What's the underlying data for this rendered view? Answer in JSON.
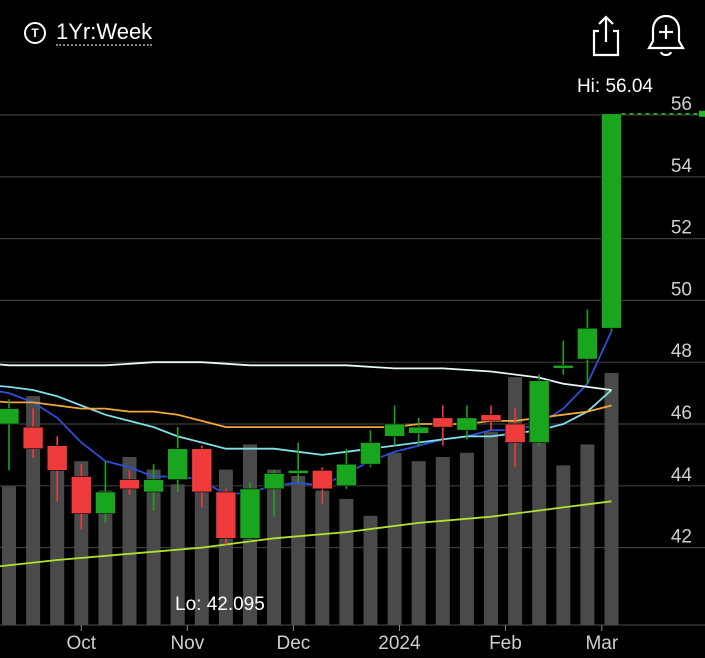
{
  "header": {
    "period_label": "1Yr:Week",
    "period_icon": "T"
  },
  "chart_data": {
    "type": "candlestick",
    "period": "1Yr:Week",
    "y_ticks": [
      "42",
      "44",
      "46",
      "48",
      "50",
      "52",
      "54",
      "56"
    ],
    "ylim": [
      39.2,
      57.3
    ],
    "x_ticks": [
      {
        "label": "Oct",
        "week": 3
      },
      {
        "label": "Nov",
        "week": 7.4
      },
      {
        "label": "Dec",
        "week": 11.8
      },
      {
        "label": "2024",
        "week": 16.2
      },
      {
        "label": "Feb",
        "week": 20.6
      },
      {
        "label": "Mar",
        "week": 24.6
      }
    ],
    "hi_label": "Hi: 56.04",
    "hi_value": 56.04,
    "lo_label": "Lo: 42.095",
    "lo_value": 42.095,
    "candles": [
      {
        "w": 0,
        "o": 46.0,
        "h": 46.8,
        "l": 44.5,
        "c": 46.5
      },
      {
        "w": 1,
        "o": 45.9,
        "h": 46.5,
        "l": 44.9,
        "c": 45.2
      },
      {
        "w": 2,
        "o": 45.3,
        "h": 45.6,
        "l": 43.5,
        "c": 44.5
      },
      {
        "w": 3,
        "o": 44.3,
        "h": 44.7,
        "l": 42.6,
        "c": 43.1
      },
      {
        "w": 4,
        "o": 43.1,
        "h": 44.8,
        "l": 42.8,
        "c": 43.8
      },
      {
        "w": 5,
        "o": 44.2,
        "h": 44.5,
        "l": 43.7,
        "c": 43.9
      },
      {
        "w": 6,
        "o": 43.8,
        "h": 44.7,
        "l": 43.2,
        "c": 44.2
      },
      {
        "w": 7,
        "o": 44.2,
        "h": 45.9,
        "l": 43.8,
        "c": 45.2
      },
      {
        "w": 8,
        "o": 45.2,
        "h": 45.3,
        "l": 43.3,
        "c": 43.8
      },
      {
        "w": 9,
        "o": 43.8,
        "h": 43.9,
        "l": 42.1,
        "c": 42.3
      },
      {
        "w": 10,
        "o": 42.3,
        "h": 44.1,
        "l": 42.2,
        "c": 43.9
      },
      {
        "w": 11,
        "o": 43.9,
        "h": 44.5,
        "l": 43.0,
        "c": 44.4
      },
      {
        "w": 12,
        "o": 44.4,
        "h": 45.4,
        "l": 44.1,
        "c": 44.5
      },
      {
        "w": 13,
        "o": 44.5,
        "h": 44.6,
        "l": 43.4,
        "c": 43.9
      },
      {
        "w": 14,
        "o": 44.0,
        "h": 45.2,
        "l": 43.9,
        "c": 44.7
      },
      {
        "w": 15,
        "o": 44.7,
        "h": 45.8,
        "l": 44.6,
        "c": 45.4
      },
      {
        "w": 16,
        "o": 45.6,
        "h": 46.6,
        "l": 45.3,
        "c": 46.0
      },
      {
        "w": 17,
        "o": 45.7,
        "h": 46.2,
        "l": 45.3,
        "c": 45.9
      },
      {
        "w": 18,
        "o": 46.2,
        "h": 46.6,
        "l": 45.3,
        "c": 45.9
      },
      {
        "w": 19,
        "o": 45.8,
        "h": 46.6,
        "l": 45.5,
        "c": 46.2
      },
      {
        "w": 20,
        "o": 46.3,
        "h": 46.6,
        "l": 45.8,
        "c": 46.1
      },
      {
        "w": 21,
        "o": 46.0,
        "h": 46.5,
        "l": 44.6,
        "c": 45.4
      },
      {
        "w": 22,
        "o": 45.4,
        "h": 47.6,
        "l": 45.3,
        "c": 47.4
      },
      {
        "w": 23,
        "o": 47.8,
        "h": 48.7,
        "l": 47.6,
        "c": 47.9
      },
      {
        "w": 24,
        "o": 48.1,
        "h": 49.7,
        "l": 47.3,
        "c": 49.1
      },
      {
        "w": 25,
        "o": 49.1,
        "h": 56.04,
        "l": 49.0,
        "c": 56.04
      }
    ],
    "volume": [
      0.33,
      0.545,
      0.38,
      0.39,
      0.32,
      0.4,
      0.37,
      0.335,
      0.34,
      0.37,
      0.43,
      0.37,
      0.355,
      0.32,
      0.3,
      0.26,
      0.41,
      0.39,
      0.4,
      0.41,
      0.46,
      0.59,
      0.51,
      0.38,
      0.43,
      0.6
    ],
    "moving_averages": [
      {
        "color": "#2f4fd6",
        "values": [
          [
            -1.5,
            47.2
          ],
          [
            0,
            47.0
          ],
          [
            1,
            46.7
          ],
          [
            2,
            46.2
          ],
          [
            3,
            45.4
          ],
          [
            4,
            44.8
          ],
          [
            5,
            44.6
          ],
          [
            6,
            44.3
          ],
          [
            7,
            44.3
          ],
          [
            8,
            44.2
          ],
          [
            9,
            43.7
          ],
          [
            10,
            43.8
          ],
          [
            11,
            44.0
          ],
          [
            12,
            44.1
          ],
          [
            13,
            44.0
          ],
          [
            14,
            44.4
          ],
          [
            15,
            44.8
          ],
          [
            16,
            45.1
          ],
          [
            17,
            45.3
          ],
          [
            18,
            45.5
          ],
          [
            19,
            45.6
          ],
          [
            20,
            45.8
          ],
          [
            21,
            45.8
          ],
          [
            22,
            46.0
          ],
          [
            23,
            46.5
          ],
          [
            24,
            47.3
          ],
          [
            25,
            49.0
          ]
        ]
      },
      {
        "color": "#7fe0e8",
        "values": [
          [
            -1.5,
            47.3
          ],
          [
            0,
            47.2
          ],
          [
            1,
            47.1
          ],
          [
            2,
            46.9
          ],
          [
            3,
            46.6
          ],
          [
            4,
            46.3
          ],
          [
            5,
            46.1
          ],
          [
            6,
            45.9
          ],
          [
            7,
            45.6
          ],
          [
            8,
            45.4
          ],
          [
            9,
            45.2
          ],
          [
            10,
            45.2
          ],
          [
            11,
            45.2
          ],
          [
            12,
            45.1
          ],
          [
            13,
            45.0
          ],
          [
            14,
            45.1
          ],
          [
            15,
            45.2
          ],
          [
            16,
            45.3
          ],
          [
            17,
            45.4
          ],
          [
            18,
            45.5
          ],
          [
            19,
            45.6
          ],
          [
            20,
            45.6
          ],
          [
            21,
            45.7
          ],
          [
            22,
            45.8
          ],
          [
            23,
            46.0
          ],
          [
            24,
            46.4
          ],
          [
            25,
            47.1
          ]
        ]
      },
      {
        "color": "#f2a93b",
        "values": [
          [
            -1.5,
            46.8
          ],
          [
            0,
            46.7
          ],
          [
            1,
            46.7
          ],
          [
            2,
            46.6
          ],
          [
            3,
            46.5
          ],
          [
            4,
            46.5
          ],
          [
            5,
            46.4
          ],
          [
            6,
            46.4
          ],
          [
            7,
            46.3
          ],
          [
            8,
            46.1
          ],
          [
            9,
            45.9
          ],
          [
            10,
            45.9
          ],
          [
            11,
            45.9
          ],
          [
            12,
            45.9
          ],
          [
            13,
            45.9
          ],
          [
            14,
            45.9
          ],
          [
            15,
            45.9
          ],
          [
            16,
            45.9
          ],
          [
            17,
            46.0
          ],
          [
            18,
            46.0
          ],
          [
            19,
            46.0
          ],
          [
            20,
            46.1
          ],
          [
            21,
            46.1
          ],
          [
            22,
            46.2
          ],
          [
            23,
            46.3
          ],
          [
            24,
            46.4
          ],
          [
            25,
            46.6
          ]
        ]
      },
      {
        "color": "#e8f7f7",
        "values": [
          [
            -1.5,
            48.0
          ],
          [
            0,
            47.9
          ],
          [
            2,
            47.9
          ],
          [
            4,
            47.9
          ],
          [
            6,
            48.0
          ],
          [
            8,
            48.0
          ],
          [
            10,
            47.9
          ],
          [
            12,
            47.9
          ],
          [
            14,
            47.9
          ],
          [
            16,
            47.8
          ],
          [
            18,
            47.8
          ],
          [
            20,
            47.7
          ],
          [
            22,
            47.5
          ],
          [
            23,
            47.3
          ],
          [
            24,
            47.2
          ],
          [
            25,
            47.1
          ]
        ]
      },
      {
        "color": "#b2e22e",
        "values": [
          [
            -1.5,
            41.3
          ],
          [
            2,
            41.6
          ],
          [
            5,
            41.8
          ],
          [
            8,
            42.0
          ],
          [
            11,
            42.3
          ],
          [
            14,
            42.5
          ],
          [
            17,
            42.8
          ],
          [
            20,
            43.0
          ],
          [
            23,
            43.3
          ],
          [
            25,
            43.5
          ]
        ]
      }
    ],
    "colors": {
      "up": "#1aa51f",
      "down": "#ef3b3b",
      "volume": "#4a4a4a",
      "grid": "#3c3c3c",
      "background": "#000000",
      "hi_dash": "#23b52a"
    }
  }
}
